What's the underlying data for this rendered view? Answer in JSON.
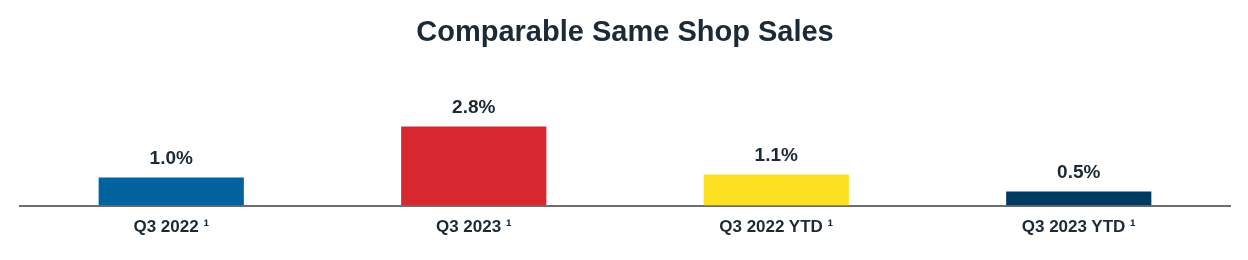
{
  "chart_data": {
    "type": "bar",
    "title": "Comparable Same Shop Sales",
    "categories": [
      "Q3 2022 ¹",
      "Q3 2023 ¹",
      "Q3 2022 YTD ¹",
      "Q3 2023 YTD ¹"
    ],
    "values": [
      1.0,
      2.8,
      1.1,
      0.5
    ],
    "colors": [
      "#0063a0",
      "#d7282f",
      "#fde021",
      "#003a63"
    ],
    "value_labels": [
      "1.0%",
      "2.8%",
      "1.1%",
      "0.5%"
    ],
    "grid": false,
    "legend": false
  }
}
